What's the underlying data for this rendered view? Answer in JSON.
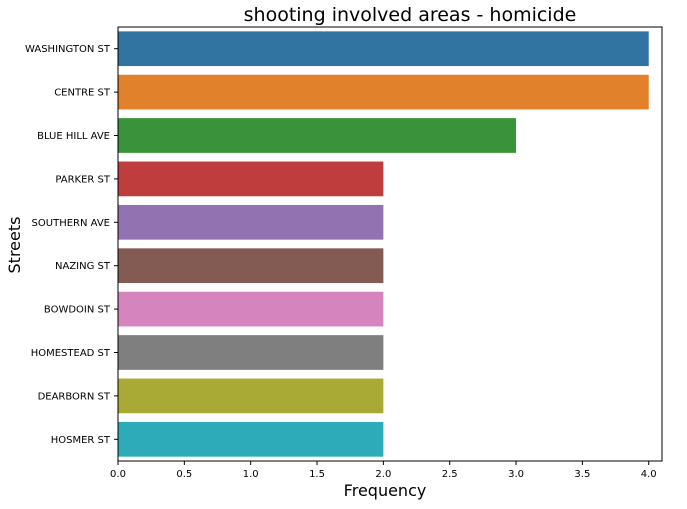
{
  "chart_data": {
    "type": "bar",
    "orientation": "horizontal",
    "title": "shooting involved areas - homicide",
    "xlabel": "Frequency",
    "ylabel": "Streets",
    "xlim": [
      0,
      4.1
    ],
    "xticks": [
      0.0,
      0.5,
      1.0,
      1.5,
      2.0,
      2.5,
      3.0,
      3.5,
      4.0
    ],
    "xtick_labels": [
      "0.0",
      "0.5",
      "1.0",
      "1.5",
      "2.0",
      "2.5",
      "3.0",
      "3.5",
      "4.0"
    ],
    "grid": false,
    "categories": [
      "WASHINGTON ST",
      "CENTRE ST",
      "BLUE HILL AVE",
      "PARKER ST",
      "SOUTHERN AVE",
      "NAZING ST",
      "BOWDOIN ST",
      "HOMESTEAD ST",
      "DEARBORN ST",
      "HOSMER ST"
    ],
    "values": [
      4,
      4,
      3,
      2,
      2,
      2,
      2,
      2,
      2,
      2
    ],
    "colors": [
      "#3274a1",
      "#e1812c",
      "#3a923a",
      "#c03d3e",
      "#9372b2",
      "#845b53",
      "#d684bd",
      "#7f7f7f",
      "#a9aa35",
      "#2eabb8"
    ]
  }
}
